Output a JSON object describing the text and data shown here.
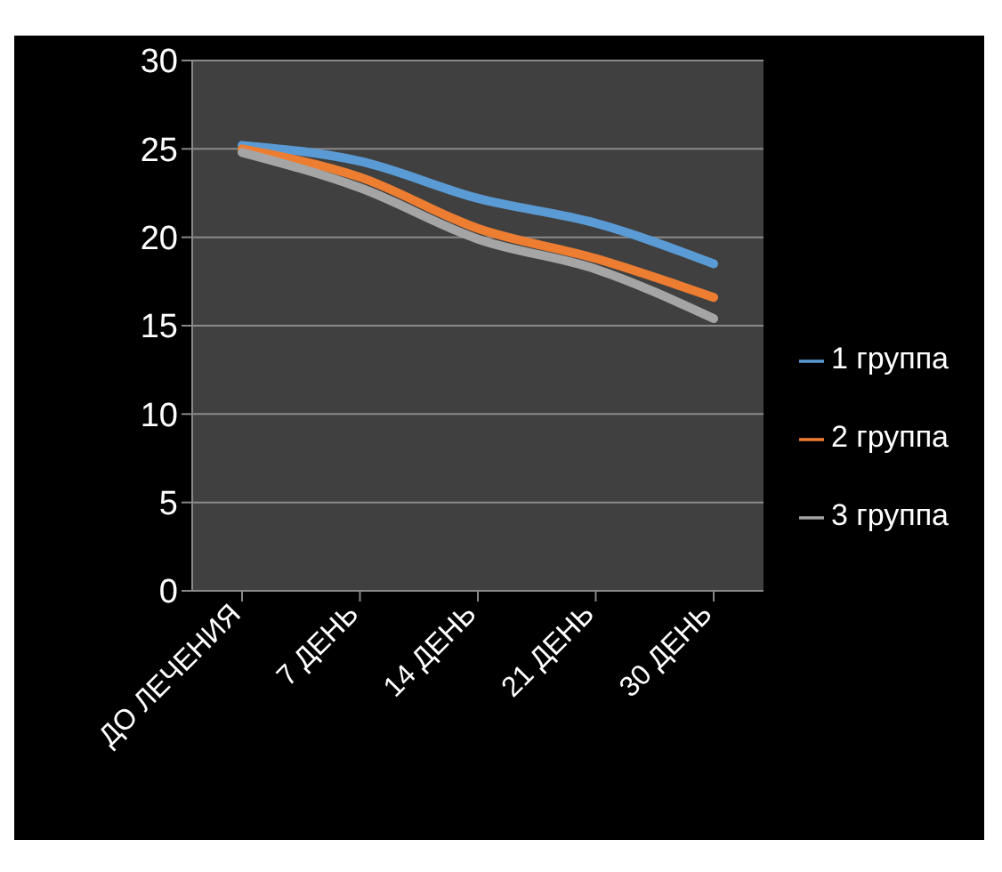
{
  "chart_data": {
    "type": "line",
    "categories": [
      "ДО ЛЕЧЕНИЯ",
      "7 ДЕНЬ",
      "14 ДЕНЬ",
      "21 ДЕНЬ",
      "30 ДЕНЬ"
    ],
    "series": [
      {
        "name": "1 группа",
        "color": "#5b9bd5",
        "values": [
          25.2,
          24.3,
          22.2,
          20.8,
          18.5
        ]
      },
      {
        "name": "2 группа",
        "color": "#ed7d31",
        "values": [
          25.0,
          23.4,
          20.5,
          18.8,
          16.6
        ]
      },
      {
        "name": "3 группа",
        "color": "#a5a5a5",
        "values": [
          24.8,
          22.8,
          19.9,
          18.2,
          15.4
        ]
      }
    ],
    "ylim": [
      0,
      30
    ],
    "yticks": [
      0,
      5,
      10,
      15,
      20,
      25,
      30
    ],
    "grid": "y",
    "legend": "right",
    "marker": "none",
    "line_style": "solid"
  }
}
